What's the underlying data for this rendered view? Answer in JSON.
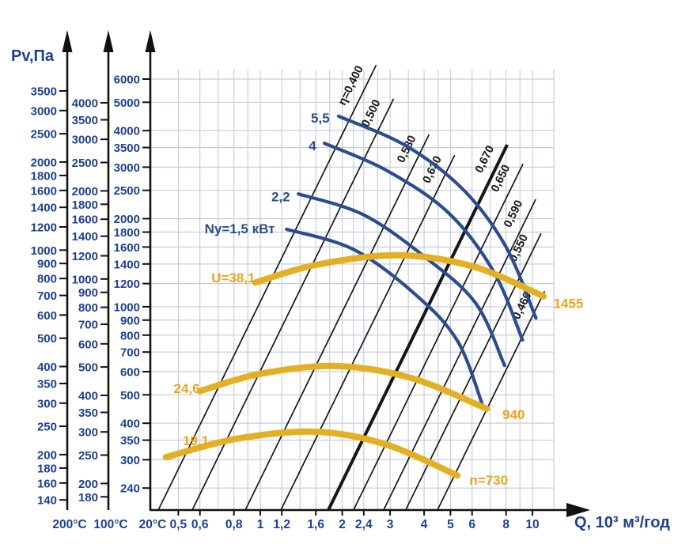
{
  "chart_data": {
    "type": "line",
    "y_axis_title": "Pv,Па",
    "x_axis_title": "Q, 10³ м³/год",
    "x_scale": "log",
    "y_scale": "log",
    "x_ticks": [
      {
        "value": 0.5,
        "label": "0,5"
      },
      {
        "value": 0.6,
        "label": "0,6"
      },
      {
        "value": 0.8,
        "label": "0,8"
      },
      {
        "value": 1,
        "label": "1"
      },
      {
        "value": 1.2,
        "label": "1,2"
      },
      {
        "value": 1.6,
        "label": "1,6"
      },
      {
        "value": 2,
        "label": "2"
      },
      {
        "value": 2.4,
        "label": "2,4"
      },
      {
        "value": 3,
        "label": "3"
      },
      {
        "value": 4,
        "label": "4"
      },
      {
        "value": 5,
        "label": "5"
      },
      {
        "value": 6,
        "label": "6"
      },
      {
        "value": 8,
        "label": "8"
      },
      {
        "value": 10,
        "label": "10"
      }
    ],
    "pressure_axes": [
      {
        "temperature": "200°C",
        "ticks": [
          3500,
          3000,
          2500,
          2000,
          1800,
          1600,
          1400,
          1200,
          1000,
          900,
          800,
          700,
          600,
          500,
          400,
          350,
          300,
          250,
          200,
          180,
          160,
          140
        ]
      },
      {
        "temperature": "100°C",
        "ticks": [
          4000,
          3500,
          3000,
          2500,
          2000,
          1800,
          1600,
          1400,
          1200,
          1000,
          900,
          800,
          700,
          600,
          500,
          400,
          350,
          300,
          250,
          200,
          180
        ]
      },
      {
        "temperature": "20°C",
        "ticks": [
          6000,
          5000,
          4000,
          3500,
          3000,
          2500,
          2000,
          1800,
          1600,
          1400,
          1200,
          1000,
          900,
          800,
          700,
          600,
          500,
          400,
          350,
          300,
          240
        ]
      }
    ],
    "grid": {
      "vertical_q": [
        0.5,
        0.6,
        0.7,
        0.8,
        0.9,
        1,
        1.2,
        1.4,
        1.6,
        1.8,
        2,
        2.2,
        2.4,
        2.7,
        3,
        3.5,
        4,
        4.5,
        5,
        6,
        7,
        8,
        9,
        10,
        12
      ],
      "horizontal_p": [
        6000,
        5000,
        4000,
        3500,
        3000,
        2500,
        2000,
        1800,
        1600,
        1400,
        1200,
        1000,
        900,
        800,
        700,
        600,
        500,
        400,
        350,
        300,
        240
      ]
    },
    "efficiency_lines": {
      "exponent": 1.9,
      "p_bottom": 202,
      "lines": [
        {
          "label": "η=0,400",
          "value": 0.4,
          "k": 1040,
          "p_top": 6700,
          "bold": false
        },
        {
          "label": "0,500",
          "value": 0.5,
          "k": 603,
          "p_top": 5140,
          "bold": false
        },
        {
          "label": "0,580",
          "value": 0.58,
          "k": 257,
          "p_top": 3880,
          "bold": false
        },
        {
          "label": "0,630",
          "value": 0.63,
          "k": 145,
          "p_top": 3300,
          "bold": false
        },
        {
          "label": "0,670",
          "value": 0.67,
          "k": 67.6,
          "p_top": 3580,
          "bold": true
        },
        {
          "label": "0,650",
          "value": 0.65,
          "k": 45.1,
          "p_top": 3080,
          "bold": false
        },
        {
          "label": "0,590",
          "value": 0.59,
          "k": 27.8,
          "p_top": 2330,
          "bold": false
        },
        {
          "label": "0,550",
          "value": 0.55,
          "k": 19.5,
          "p_top": 1780,
          "bold": false
        },
        {
          "label": "0,460",
          "value": 0.46,
          "k": 11.7,
          "p_top": 1130,
          "bold": false
        }
      ]
    },
    "power_curves": [
      {
        "name": "Ny-5.5",
        "label": "5,5",
        "points": [
          [
            1.94,
            4480
          ],
          [
            3.45,
            3540
          ],
          [
            5.6,
            2500
          ],
          [
            8.0,
            1600
          ],
          [
            10.3,
            915
          ]
        ]
      },
      {
        "name": "Ny-4",
        "label": "4",
        "points": [
          [
            1.72,
            3620
          ],
          [
            2.9,
            2930
          ],
          [
            4.9,
            2100
          ],
          [
            7.2,
            1320
          ],
          [
            9.2,
            770
          ]
        ]
      },
      {
        "name": "Ny-2.2",
        "label": "2,2",
        "points": [
          [
            1.38,
            2430
          ],
          [
            2.4,
            2060
          ],
          [
            4.1,
            1460
          ],
          [
            6.2,
            1025
          ],
          [
            7.9,
            630
          ]
        ]
      },
      {
        "name": "Ny-1.5",
        "label": "Ny=1,5 кВт",
        "points": [
          [
            1.25,
            1840
          ],
          [
            2.2,
            1570
          ],
          [
            3.7,
            1105
          ],
          [
            5.3,
            765
          ],
          [
            6.6,
            453
          ]
        ]
      }
    ],
    "fan_speed_curves": [
      {
        "name": "n-1455",
        "speed_label": "1455",
        "u_label": "U=38,1",
        "points": [
          [
            0.96,
            1210
          ],
          [
            1.6,
            1390
          ],
          [
            3.2,
            1500
          ],
          [
            6.1,
            1370
          ],
          [
            11.0,
            1085
          ]
        ]
      },
      {
        "name": "n-940",
        "speed_label": "940",
        "u_label": "24,6",
        "points": [
          [
            0.6,
            515
          ],
          [
            1.0,
            590
          ],
          [
            1.9,
            627
          ],
          [
            3.6,
            570
          ],
          [
            6.8,
            448
          ]
        ]
      },
      {
        "name": "n-730",
        "speed_label": "n=730",
        "u_label": "19,1",
        "points": [
          [
            0.45,
            306
          ],
          [
            0.82,
            354
          ],
          [
            1.6,
            374
          ],
          [
            2.9,
            338
          ],
          [
            5.3,
            265
          ]
        ]
      }
    ],
    "curve_labels": {
      "yellow": [
        {
          "text": "U=38,1",
          "q": 0.99,
          "p": 1250,
          "anchor": "end"
        },
        {
          "text": "1455",
          "q": 11.4,
          "p": 1020,
          "anchor": "start"
        },
        {
          "text": "24,6",
          "q": 0.62,
          "p": 523,
          "anchor": "end"
        },
        {
          "text": "940",
          "q": 7.4,
          "p": 426,
          "anchor": "start"
        },
        {
          "text": "19,1",
          "q": 0.67,
          "p": 347,
          "anchor": "end"
        },
        {
          "text": "n=730",
          "q": 5.6,
          "p": 254,
          "anchor": "start"
        }
      ],
      "blue": [
        {
          "text": "5,5",
          "q": 1.86,
          "p": 4400,
          "anchor": "end"
        },
        {
          "text": "4",
          "q": 1.66,
          "p": 3530,
          "anchor": "end"
        },
        {
          "text": "2,2",
          "q": 1.33,
          "p": 2370,
          "anchor": "end"
        },
        {
          "text": "Ny=1,5 кВт",
          "q": 1.17,
          "p": 1840,
          "anchor": "end"
        }
      ]
    },
    "colors": {
      "navy_text": "#1e4093",
      "curve_blue": "#2c4c92",
      "curve_yellow": "#e4b023",
      "yellow_text": "#eda31d",
      "grid": "#c8cede",
      "line_black": "#161616",
      "axis_black": "#111111"
    }
  }
}
